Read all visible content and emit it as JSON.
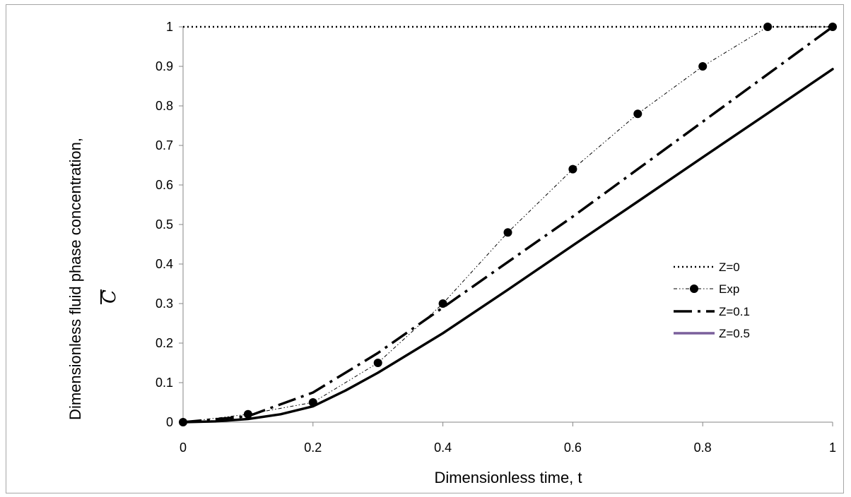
{
  "chart_data": {
    "type": "line",
    "xlabel": "Dimensionless time, t",
    "ylabel": "Dimensionless fluid phase concentration,",
    "ylabel_symbol": "C",
    "xlim": [
      0,
      1
    ],
    "ylim": [
      0,
      1
    ],
    "x_ticks": [
      0,
      0.2,
      0.4,
      0.6,
      0.8,
      1
    ],
    "x_tick_labels": [
      "0",
      "0.2",
      "0.4",
      "0.6",
      "0.8",
      "1"
    ],
    "y_ticks": [
      0,
      0.1,
      0.2,
      0.3,
      0.4,
      0.5,
      0.6,
      0.7,
      0.8,
      0.9,
      1
    ],
    "y_tick_labels": [
      "0",
      "0.1",
      "0.2",
      "0.3",
      "0.4",
      "0.5",
      "0.6",
      "0.7",
      "0.8",
      "0.9",
      "1"
    ],
    "grid": false,
    "legend_position": "right-center",
    "series": [
      {
        "name": "Z=0",
        "style": "dotted",
        "color": "#000000",
        "x": [
          0,
          1
        ],
        "y": [
          1,
          1
        ]
      },
      {
        "name": "Exp",
        "style": "dash-dot-dot-markers",
        "color": "#000000",
        "x": [
          0,
          0.1,
          0.2,
          0.3,
          0.4,
          0.5,
          0.6,
          0.7,
          0.8,
          0.9,
          1
        ],
        "y": [
          0,
          0.02,
          0.05,
          0.15,
          0.3,
          0.48,
          0.64,
          0.78,
          0.9,
          1,
          1
        ]
      },
      {
        "name": "Z=0.1",
        "style": "long-dash-dot",
        "color": "#000000",
        "x": [
          0,
          0.1,
          0.2,
          0.3,
          0.4,
          0.5,
          0.6,
          0.7,
          0.8,
          0.9,
          1
        ],
        "y": [
          0,
          0.015,
          0.075,
          0.175,
          0.29,
          0.405,
          0.52,
          0.64,
          0.76,
          0.88,
          1
        ]
      },
      {
        "name": "Z=0.5",
        "style": "solid",
        "color": "#000000",
        "legend_color": "#7a5f9b",
        "x": [
          0,
          0.05,
          0.1,
          0.15,
          0.2,
          0.25,
          0.3,
          0.4,
          0.5,
          0.6,
          0.7,
          0.8,
          0.9,
          1
        ],
        "y": [
          0,
          0.002,
          0.008,
          0.02,
          0.04,
          0.08,
          0.125,
          0.225,
          0.335,
          0.447,
          0.558,
          0.67,
          0.781,
          0.893
        ]
      }
    ]
  }
}
